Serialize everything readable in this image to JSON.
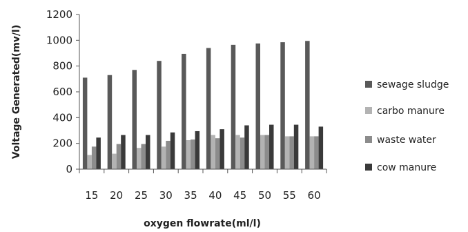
{
  "chart_data": {
    "type": "bar",
    "title": "",
    "xlabel": "oxygen flowrate(ml/l)",
    "ylabel": "Voltage Generated(mv/l)",
    "ylim": [
      0,
      1200
    ],
    "yticks": [
      0,
      200,
      400,
      600,
      800,
      1000,
      1200
    ],
    "categories": [
      "15",
      "20",
      "25",
      "30",
      "35",
      "40",
      "45",
      "50",
      "55",
      "60"
    ],
    "grid": false,
    "legend_position": "right",
    "series": [
      {
        "name": "sewage sludge",
        "color": "#595959",
        "values": [
          710,
          730,
          770,
          840,
          895,
          940,
          965,
          975,
          985,
          995
        ]
      },
      {
        "name": "carbo manure",
        "color": "#b3b3b3",
        "values": [
          110,
          120,
          165,
          175,
          225,
          265,
          265,
          265,
          255,
          255
        ]
      },
      {
        "name": "waste water",
        "color": "#8c8c8c",
        "values": [
          175,
          195,
          195,
          220,
          230,
          240,
          245,
          265,
          255,
          255
        ]
      },
      {
        "name": "cow manure",
        "color": "#3a3a3a",
        "values": [
          245,
          265,
          265,
          285,
          295,
          310,
          340,
          345,
          345,
          330
        ]
      }
    ]
  }
}
